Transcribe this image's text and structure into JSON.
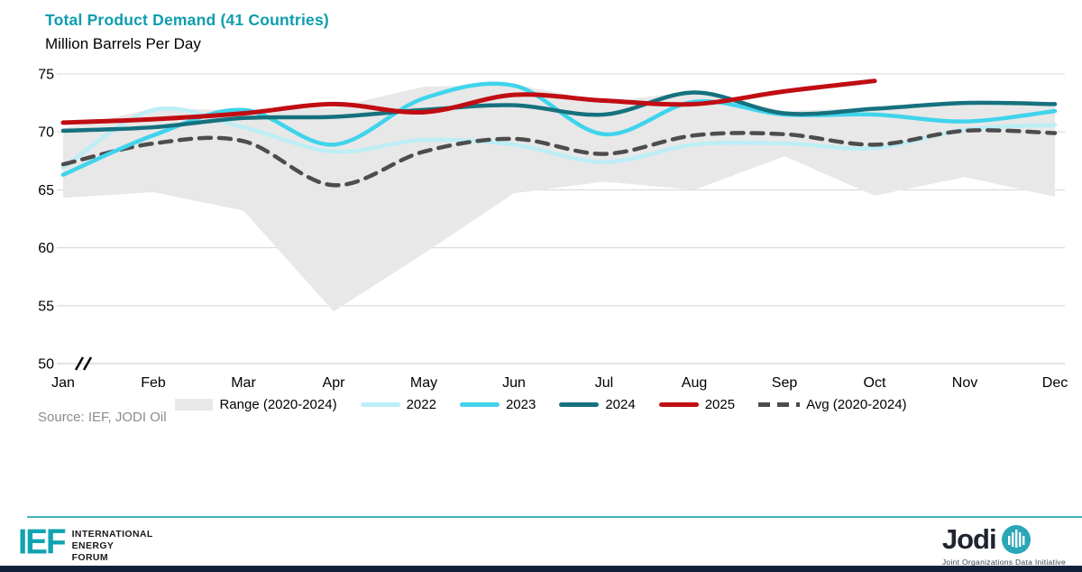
{
  "title": "Total Product Demand (41 Countries)",
  "subtitle": "Million Barrels Per Day",
  "source": "Source: IEF, JODI Oil",
  "colors": {
    "title_teal": "#0D9DAF",
    "range_band": "#E8E8E8",
    "s2022": "#BDEEF6",
    "s2023": "#3FD4EC",
    "s2024": "#16717E",
    "s2025": "#C00D12",
    "avg": "#4D4D4D",
    "grid": "#D9D9D9",
    "axis_text": "#000000",
    "footer_bar": "#13203A",
    "footer_rule": "#44B3BF"
  },
  "footer": {
    "ief_acronym": "IEF",
    "ief_lines": [
      "INTERNATIONAL",
      "ENERGY",
      "FORUM"
    ],
    "jodi_wordmark": "Jodi",
    "jodi_tm": "™",
    "jodi_tagline": "Joint Organizations Data Initiative"
  },
  "chart_data": {
    "type": "line",
    "title": "Total Product Demand (41 Countries)",
    "ylabel_note": "Million Barrels Per Day",
    "categories": [
      "Jan",
      "Feb",
      "Mar",
      "Apr",
      "May",
      "Jun",
      "Jul",
      "Aug",
      "Sep",
      "Oct",
      "Nov",
      "Dec"
    ],
    "ylim": [
      50,
      75
    ],
    "yticks": [
      50,
      55,
      60,
      65,
      70,
      75
    ],
    "axis_break": true,
    "grid": "horizontal",
    "legend_position": "bottom",
    "series": [
      {
        "name": "Range (2020-2024)",
        "type": "band",
        "color": "#E8E8E8",
        "upper": [
          70.3,
          72.0,
          71.9,
          72.1,
          73.9,
          74.1,
          72.6,
          73.5,
          71.8,
          72.1,
          72.6,
          72.5
        ],
        "lower": [
          64.3,
          64.8,
          63.2,
          54.5,
          59.5,
          64.7,
          65.7,
          65.0,
          67.9,
          64.5,
          66.1,
          64.4
        ]
      },
      {
        "name": "2022",
        "type": "line",
        "color": "#BDEEF6",
        "dashed": false,
        "values": [
          66.9,
          71.9,
          70.4,
          68.3,
          69.3,
          68.9,
          67.4,
          68.9,
          69.0,
          68.6,
          70.2,
          70.6
        ]
      },
      {
        "name": "Avg (2020-2024)",
        "type": "line",
        "color": "#4D4D4D",
        "dashed": true,
        "values": [
          67.2,
          69.0,
          69.2,
          65.4,
          68.3,
          69.4,
          68.1,
          69.7,
          69.8,
          68.9,
          70.1,
          69.9
        ]
      },
      {
        "name": "2023",
        "type": "line",
        "color": "#3FD4EC",
        "dashed": false,
        "values": [
          66.3,
          69.7,
          71.9,
          68.9,
          72.9,
          74.0,
          69.8,
          72.6,
          71.5,
          71.5,
          70.9,
          71.8
        ]
      },
      {
        "name": "2024",
        "type": "line",
        "color": "#16717E",
        "dashed": false,
        "values": [
          70.1,
          70.4,
          71.2,
          71.3,
          71.9,
          72.3,
          71.5,
          73.4,
          71.6,
          72.0,
          72.5,
          72.4
        ]
      },
      {
        "name": "2025",
        "type": "line",
        "color": "#C00D12",
        "dashed": false,
        "values": [
          70.8,
          71.1,
          71.6,
          72.4,
          71.7,
          73.2,
          72.7,
          72.4,
          73.5,
          74.4,
          null,
          null
        ]
      }
    ],
    "legend_order": [
      "Range (2020-2024)",
      "2022",
      "2023",
      "2024",
      "2025",
      "Avg (2020-2024)"
    ]
  }
}
